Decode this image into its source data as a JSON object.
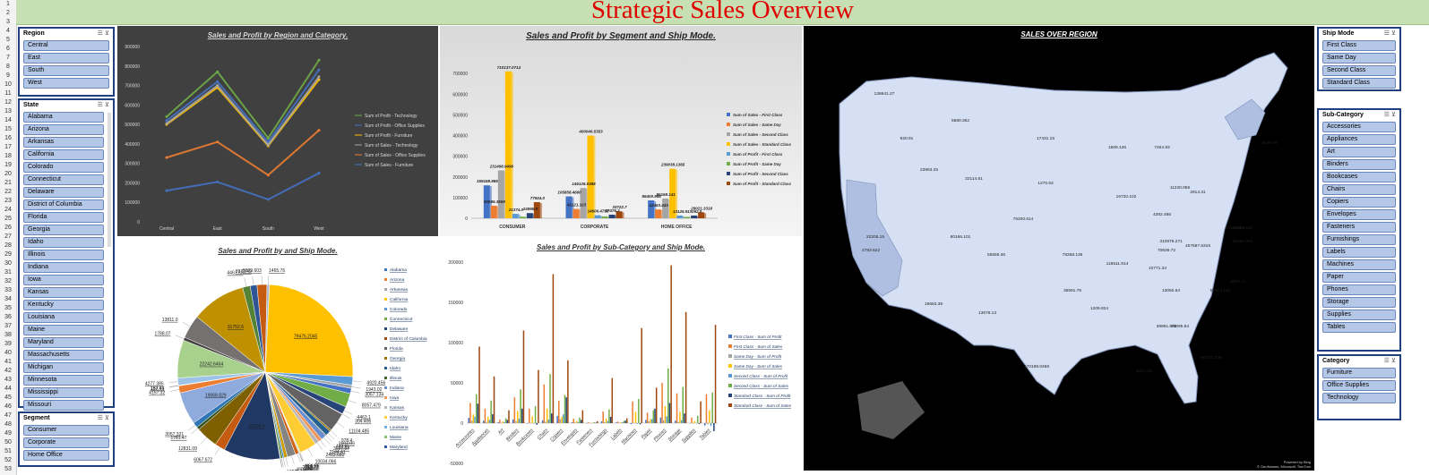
{
  "app": {
    "title": "Strategic Sales Overview"
  },
  "row_numbers": [
    "1",
    "2",
    "3",
    "4",
    "5",
    "6",
    "7",
    "8",
    "9",
    "10",
    "11",
    "12",
    "13",
    "14",
    "15",
    "16",
    "17",
    "18",
    "19",
    "20",
    "21",
    "22",
    "23",
    "24",
    "25",
    "26",
    "27",
    "28",
    "29",
    "30",
    "31",
    "32",
    "33",
    "34",
    "35",
    "36",
    "37",
    "38",
    "39",
    "40",
    "41",
    "42",
    "43",
    "44",
    "45",
    "46",
    "47",
    "48",
    "49",
    "50",
    "51",
    "52",
    "53"
  ],
  "slicers": {
    "region": {
      "title": "Region",
      "items": [
        "Central",
        "East",
        "South",
        "West"
      ]
    },
    "state": {
      "title": "State",
      "items": [
        "Alabama",
        "Arizona",
        "Arkansas",
        "California",
        "Colorado",
        "Connecticut",
        "Delaware",
        "District of Columbia",
        "Florida",
        "Georgia",
        "Idaho",
        "Illinois",
        "Indiana",
        "Iowa",
        "Kansas",
        "Kentucky",
        "Louisiana",
        "Maine",
        "Maryland",
        "Massachusetts",
        "Michigan",
        "Minnesota",
        "Mississippi",
        "Missouri"
      ]
    },
    "segment": {
      "title": "Segment",
      "items": [
        "Consumer",
        "Corporate",
        "Home Office"
      ]
    },
    "ship_mode": {
      "title": "Ship Mode",
      "items": [
        "First Class",
        "Same Day",
        "Second Class",
        "Standard Class"
      ]
    },
    "sub_category": {
      "title": "Sub-Category",
      "items": [
        "Accessories",
        "Appliances",
        "Art",
        "Binders",
        "Bookcases",
        "Chairs",
        "Copiers",
        "Envelopes",
        "Fasteners",
        "Furnishings",
        "Labels",
        "Machines",
        "Paper",
        "Phones",
        "Storage",
        "Supplies",
        "Tables"
      ]
    },
    "category": {
      "title": "Category",
      "items": [
        "Furniture",
        "Office Supplies",
        "Technology"
      ]
    }
  },
  "charts": {
    "line": {
      "title": "Sales and Profit by Region and Category.",
      "chart_data": {
        "type": "line",
        "categories": [
          "Central",
          "East",
          "South",
          "West"
        ],
        "ylim": [
          0,
          900000
        ],
        "yticks": [
          "0",
          "100000",
          "200000",
          "300000",
          "400000",
          "500000",
          "600000",
          "700000",
          "800000",
          "900000"
        ],
        "series": [
          {
            "name": "Sum of Profit - Technology",
            "color": "#70ad47",
            "values": [
              540000,
              770000,
              430000,
              830000
            ]
          },
          {
            "name": "Sum of Profit - Office Supplies",
            "color": "#4472c4",
            "values": [
              520000,
              720000,
              410000,
              780000
            ]
          },
          {
            "name": "Sum of Profit - Furniture",
            "color": "#ffc000",
            "values": [
              500000,
              690000,
              390000,
              730000
            ]
          },
          {
            "name": "Sum of Sales - Technology",
            "color": "#a5a5a5",
            "values": [
              505000,
              700000,
              395000,
              745000
            ]
          },
          {
            "name": "Sum of Sales - Office Supplies",
            "color": "#ed7d31",
            "values": [
              330000,
              410000,
              240000,
              470000
            ]
          },
          {
            "name": "Sum of Sales - Furniture",
            "color": "#4472c4",
            "values": [
              160000,
              205000,
              115000,
              250000
            ]
          }
        ]
      }
    },
    "segment_bar": {
      "title": "Sales and Profit by Segment and Ship Mode.",
      "chart_data": {
        "type": "bar",
        "categories": [
          "CONSUMER",
          "CORPORATE",
          "HOME OFFICE"
        ],
        "ylim": [
          0,
          800000
        ],
        "yticks": [
          "0",
          "100000",
          "200000",
          "300000",
          "400000",
          "500000",
          "600000",
          "700000",
          "800000"
        ],
        "series": [
          {
            "name": "Sum of Sales - First Class",
            "color": "#4472c4",
            "values": [
              159168.965,
              105858.466,
              86400.988
            ]
          },
          {
            "name": "Sum of Sales - Same Day",
            "color": "#ed7d31",
            "values": [
              60596.3559,
              45121.323,
              42463.443
            ]
          },
          {
            "name": "Sum of Sales - Second Class",
            "color": "#a5a5a5",
            "values": [
              231498.9496,
              146126.0388,
              95169.141
            ]
          },
          {
            "name": "Sum of Sales - Standard Class",
            "color": "#ffc000",
            "values": [
              710137.0714,
              400040.5353,
              239038.1365
            ]
          },
          {
            "name": "Sum of Profit - First Class",
            "color": "#5b9bd5",
            "values": [
              21374.0,
              14606.4758,
              13125.9
            ]
          },
          {
            "name": "Sum of Profit - Same Day",
            "color": "#70ad47",
            "values": [
              7765.4,
              8969.8,
              6587.9
            ]
          },
          {
            "name": "Sum of Profit - Second Class",
            "color": "#264478",
            "values": [
              24995.9,
              17476.2,
              13092.0
            ]
          },
          {
            "name": "Sum of Profit - Standard Class",
            "color": "#9e480e",
            "values": [
              77924.0,
              33722.7,
              29021.3318
            ]
          }
        ],
        "data_labels": [
          "159168.965",
          "60596.3559",
          "231498.9496",
          "710137.0714",
          "21374.0",
          "24995.9",
          "77924.0",
          "105858.4660",
          "45121.323",
          "146126.0388",
          "400040.5353",
          "14606.4758",
          "17476.2",
          "33722.7",
          "86400.988",
          "42463.443",
          "95169.141",
          "239038.1365",
          "13125.9",
          "13092.0",
          "29021.3318"
        ]
      }
    },
    "pie": {
      "title": "Sales and Profit by  and Ship Mode.",
      "chart_data": {
        "type": "pie",
        "slices": [
          {
            "label": "79476.2045",
            "value": 79476.2045,
            "color": "#ffc000"
          },
          {
            "label": "4920.456",
            "value": 4920.456,
            "color": "#5b9bd5"
          },
          {
            "label": "1943.02",
            "value": 1943.02,
            "color": "#a5a5a5"
          },
          {
            "label": "3067.134",
            "value": 3067.134,
            "color": "#4472c4"
          },
          {
            "label": "8057.479",
            "value": 8057.479,
            "color": "#70ad47"
          },
          {
            "label": "4463.1",
            "value": 4463.1,
            "color": "#264478"
          },
          {
            "label": "304.406",
            "value": 304.406,
            "color": "#9e480e"
          },
          {
            "label": "11104.485",
            "value": 11104.485,
            "color": "#636363"
          },
          {
            "label": "978.4",
            "value": 978.4,
            "color": "#997300"
          },
          {
            "label": "3107.09",
            "value": 3107.09,
            "color": "#255e91"
          },
          {
            "label": "432.81",
            "value": 432.81,
            "color": "#43682b"
          },
          {
            "label": "3027.07",
            "value": 3027.07,
            "color": "#698ed0"
          },
          {
            "label": "2144.41",
            "value": 2144.41,
            "color": "#f1975a"
          },
          {
            "label": "2413.681",
            "value": 2413.681,
            "color": "#b7b7b7"
          },
          {
            "label": "10034.066",
            "value": 10034.066,
            "color": "#ffcd33"
          },
          {
            "label": "321.66",
            "value": 321.66,
            "color": "#7cafdd"
          },
          {
            "label": "514.93",
            "value": 514.93,
            "color": "#8cc168"
          },
          {
            "label": "39.9",
            "value": 39.9,
            "color": "#335aa1"
          },
          {
            "label": "2035.22",
            "value": 2035.22,
            "color": "#d26012"
          },
          {
            "label": "4906.76",
            "value": 4906.76,
            "color": "#848484"
          },
          {
            "label": "1961.198",
            "value": 1961.198,
            "color": "#cc9a00"
          },
          {
            "label": "890.98",
            "value": 890.98,
            "color": "#327dc2"
          },
          {
            "label": "1214.84",
            "value": 1214.84,
            "color": "#5a8a39"
          },
          {
            "label": "136.74",
            "value": 136.74,
            "color": "#8faadc"
          },
          {
            "label": "153.93",
            "value": 153.93,
            "color": "#f4b183"
          },
          {
            "label": "33000.0",
            "value": 33000.0,
            "color": "#1f3864"
          },
          {
            "label": "6067.672",
            "value": 6067.672,
            "color": "#c55a11"
          },
          {
            "label": "12831.09",
            "value": 12831.09,
            "color": "#7f6000"
          },
          {
            "label": "1781.47",
            "value": 1781.47,
            "color": "#385723"
          },
          {
            "label": "3057.321",
            "value": 3057.321,
            "color": "#2e75b6"
          },
          {
            "label": "19068.829",
            "value": 19068.829,
            "color": "#8faadc"
          },
          {
            "label": "4157.32",
            "value": 4157.32,
            "color": "#ed7d31"
          },
          {
            "label": "187.41",
            "value": 187.41,
            "color": "#a9d18e"
          },
          {
            "label": "153.64",
            "value": 153.64,
            "color": "#ffd966"
          },
          {
            "label": "4277.385",
            "value": 4277.385,
            "color": "#9dc3e6"
          },
          {
            "label": "22242.6464",
            "value": 22242.6464,
            "color": "#a9d18e"
          },
          {
            "label": "1788.07",
            "value": 1788.07,
            "color": "#404040"
          },
          {
            "label": "13811.0",
            "value": 13811.0,
            "color": "#767171"
          },
          {
            "label": "31752.6",
            "value": 31752.6,
            "color": "#bf9000"
          },
          {
            "label": "4461.33",
            "value": 4461.33,
            "color": "#548235"
          },
          {
            "label": "3973.49",
            "value": 3973.49,
            "color": "#2f5597"
          },
          {
            "label": "5809.603",
            "value": 5809.603,
            "color": "#c55a11"
          },
          {
            "label": "1465.76",
            "value": 1465.76,
            "color": "#adb9ca"
          }
        ],
        "legend": [
          "Alabama",
          "Arizona",
          "Arkansas",
          "California",
          "Colorado",
          "Connecticut",
          "Delaware",
          "District of Columbia",
          "Florida",
          "Georgia",
          "Idaho",
          "Illinois",
          "Indiana",
          "Iowa",
          "Kansas",
          "Kentucky",
          "Louisiana",
          "Maine",
          "Maryland"
        ],
        "legend_colors": [
          "#4472c4",
          "#ed7d31",
          "#a5a5a5",
          "#ffc000",
          "#5b9bd5",
          "#70ad47",
          "#264478",
          "#9e480e",
          "#636363",
          "#997300",
          "#255e91",
          "#43682b",
          "#698ed0",
          "#f1975a",
          "#b7b7b7",
          "#ffcd33",
          "#7cafdd",
          "#8cc168",
          "#335aa1"
        ]
      }
    },
    "subcat_bar": {
      "title": "Sales and Profit by Sub-Category and Ship Mode.",
      "chart_data": {
        "type": "bar",
        "categories": [
          "Accessories",
          "Appliances",
          "Art",
          "Binders",
          "Bookcases",
          "Chairs",
          "Copiers",
          "Envelopes",
          "Fasteners",
          "Furnishings",
          "Labels",
          "Machines",
          "Paper",
          "Phones",
          "Storage",
          "Supplies",
          "Tables"
        ],
        "ylim": [
          -50000,
          200000
        ],
        "yticks": [
          "-50000",
          "0",
          "50000",
          "100000",
          "150000",
          "200000"
        ],
        "series": [
          {
            "name": "First Class - Sum of Profit",
            "color": "#4472c4",
            "values": [
              6500,
              3000,
              1000,
              4500,
              -500,
              3500,
              9000,
              1000,
              150,
              2200,
              900,
              -1200,
              4000,
              7000,
              3000,
              -300,
              -3000
            ]
          },
          {
            "name": "First Class - Sum of Sales",
            "color": "#ed7d31",
            "values": [
              25000,
              18000,
              4500,
              32000,
              18000,
              48000,
              28000,
              5500,
              950,
              14500,
              1900,
              27000,
              13000,
              50000,
              37000,
              7000,
              36000
            ]
          },
          {
            "name": "Same Day - Sum of Profit",
            "color": "#a5a5a5",
            "values": [
              3000,
              1500,
              500,
              2500,
              -200,
              1800,
              5000,
              700,
              120,
              1200,
              500,
              -500,
              2200,
              3500,
              1500,
              -150,
              -1500
            ]
          },
          {
            "name": "Same Day - Sum of Sales",
            "color": "#ffc000",
            "values": [
              11000,
              8000,
              2000,
              15000,
              8500,
              18000,
              8000,
              2300,
              400,
              5600,
              900,
              14000,
              5000,
              21000,
              14000,
              2500,
              16000
            ]
          },
          {
            "name": "Second Class - Sum of Profit",
            "color": "#5b9bd5",
            "values": [
              8000,
              4000,
              1300,
              5500,
              -700,
              4500,
              11000,
              1400,
              200,
              2600,
              1100,
              -800,
              5000,
              8500,
              3500,
              -400,
              -3500
            ]
          },
          {
            "name": "Second Class - Sum of Sales",
            "color": "#70ad47",
            "values": [
              36000,
              28000,
              6000,
              42000,
              21000,
              61000,
              35000,
              7000,
              1200,
              17000,
              2600,
              30000,
              16000,
              68000,
              45000,
              9000,
              38000
            ]
          },
          {
            "name": "Standard Class - Sum of Profit",
            "color": "#264478",
            "values": [
              24000,
              11000,
              4000,
              18000,
              -2000,
              12000,
              32000,
              4000,
              500,
              7800,
              3200,
              -1500,
              18000,
              25000,
              12000,
              -1000,
              -10000
            ]
          },
          {
            "name": "Standard Class - Sum of Sales",
            "color": "#9e480e",
            "values": [
              95000,
              58000,
              16000,
              115000,
              66000,
              185000,
              78000,
              16000,
              2500,
              56000,
              6000,
              118000,
              44000,
              196000,
              138000,
              27000,
              122000
            ]
          }
        ]
      }
    },
    "map": {
      "title": "SALES OVER REGION",
      "chart_data": {
        "type": "map",
        "labels": [
          "138641.27",
          "5580.352",
          "920.91",
          "17431.15",
          "4382.486",
          "1315.56",
          "23963.25",
          "32114.61",
          "1270.53",
          "1609.136",
          "7464.93",
          "4579.76",
          "76200.614",
          "16720.102",
          "11220.056",
          "32108.118",
          "2914.31",
          "22205.15",
          "80166.101",
          "55555.36",
          "78258.136",
          "116511.914",
          "310876.271",
          "457687.6315",
          "35282.001",
          "4783.522",
          "19683.39",
          "13678.13",
          "36591.75",
          "1209.824",
          "70636.72",
          "10771.34",
          "13050.64",
          "49095.84",
          "39981.873",
          "55603.164",
          "8691.71",
          "170188.0458",
          "9217.03",
          "90473.708"
        ],
        "footer": "Powered by Bing",
        "attribution": "© GeoNames, Microsoft, TomTom"
      }
    }
  }
}
